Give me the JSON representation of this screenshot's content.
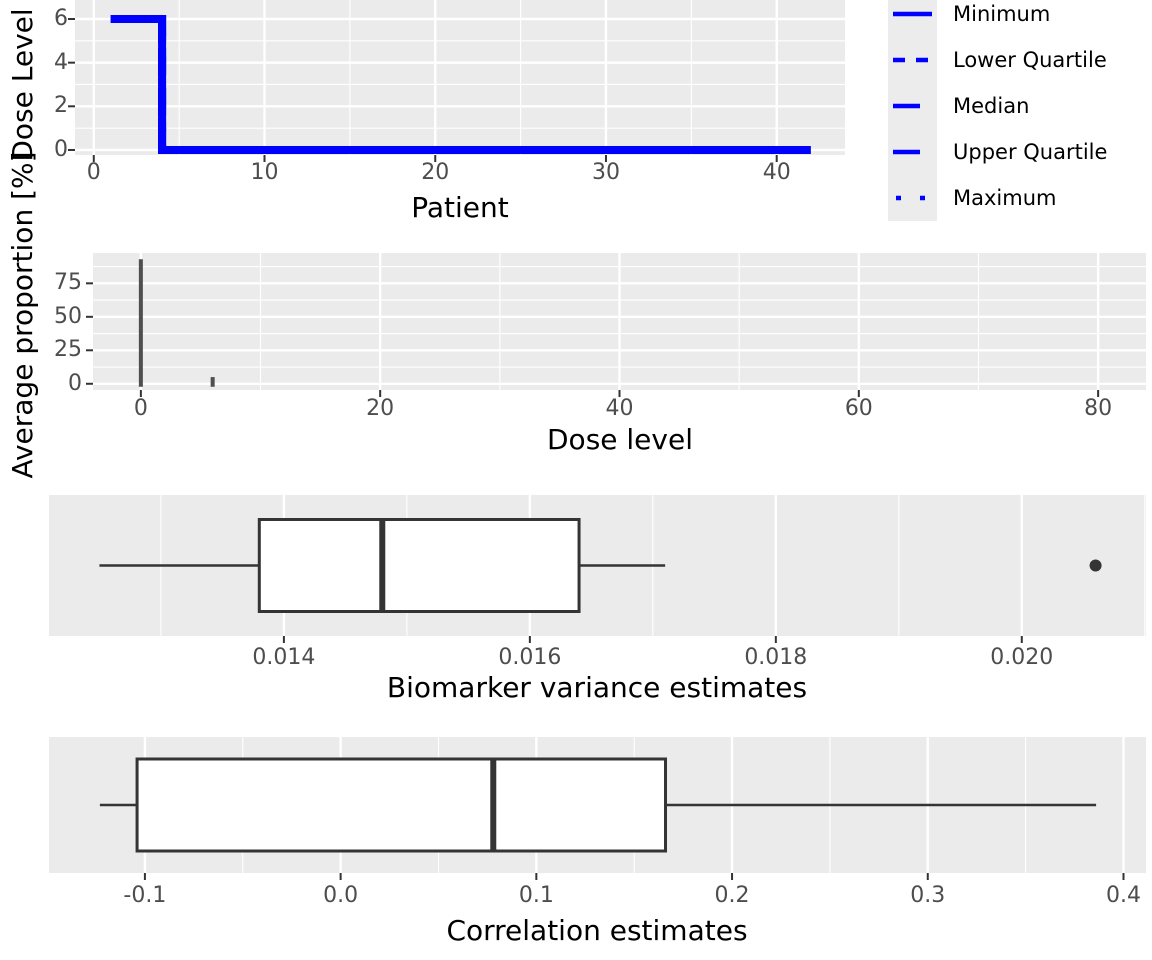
{
  "theme": {
    "panel_bg": "#EBEBEB",
    "grid_color": "#FFFFFF",
    "axis_text_color": "#4D4D4D",
    "axis_title_color": "#000000",
    "tick_mark_color": "#333333",
    "box_stroke_color": "#343434",
    "bar_fill_color": "#4F4F4F",
    "line_color": "#0000FF",
    "legend_key_bg": "#ECECEC"
  },
  "legend": {
    "color": "#0000FF",
    "items": [
      {
        "label": "Minimum",
        "linetype": "solid"
      },
      {
        "label": "Lower Quartile",
        "linetype": "dashed"
      },
      {
        "label": "Median",
        "linetype": "longdash"
      },
      {
        "label": "Upper Quartile",
        "linetype": "longdash"
      },
      {
        "label": "Maximum",
        "linetype": "dotted"
      }
    ]
  },
  "chart_data": [
    {
      "type": "line",
      "step": true,
      "title": "",
      "xlabel": "Patient",
      "ylabel": "Dose Level",
      "color": "#0000FF",
      "xlim": [
        -1.1,
        44.0
      ],
      "ylim": [
        -0.23,
        6.87
      ],
      "x_ticks": {
        "values": [
          0,
          10,
          20,
          30,
          40
        ],
        "labels": [
          "0",
          "10",
          "20",
          "30",
          "40"
        ]
      },
      "y_ticks": {
        "values": [
          0,
          2,
          4,
          6
        ],
        "labels": [
          "0",
          "2",
          "4",
          "6"
        ]
      },
      "path_points": [
        {
          "x": 1,
          "y": 6
        },
        {
          "x": 4,
          "y": 6
        },
        {
          "x": 4,
          "y": 0
        },
        {
          "x": 42,
          "y": 0
        }
      ],
      "series": [
        {
          "name": "Minimum",
          "linetype": "solid"
        },
        {
          "name": "Lower Quartile",
          "linetype": "dashed"
        },
        {
          "name": "Median",
          "linetype": "longdash"
        },
        {
          "name": "Upper Quartile",
          "linetype": "longdash"
        },
        {
          "name": "Maximum",
          "linetype": "dotted"
        }
      ],
      "note": "All five quartile series coincide: dose level 6 for patients 1-3, 0 for patients 4-42"
    },
    {
      "type": "bar",
      "title": "",
      "xlabel": "Dose level",
      "ylabel": "Average proportion [%]",
      "xlim": [
        -4,
        84
      ],
      "ylim": [
        -4.65,
        97.65
      ],
      "x_ticks": {
        "values": [
          0,
          20,
          40,
          60,
          80
        ],
        "labels": [
          "0",
          "20",
          "40",
          "60",
          "80"
        ]
      },
      "y_ticks": {
        "values": [
          0,
          25,
          50,
          75
        ],
        "labels": [
          "0",
          "25",
          "50",
          "75"
        ]
      },
      "bars": [
        {
          "x": 0,
          "value": 93
        },
        {
          "x": 6,
          "value": 5
        }
      ]
    },
    {
      "type": "boxplot",
      "title": "",
      "xlabel": "Biomarker variance estimates",
      "ylabel": "",
      "xlim": [
        0.01209,
        0.02101
      ],
      "x_ticks": {
        "values": [
          0.014,
          0.016,
          0.018,
          0.02
        ],
        "labels": [
          "0.014",
          "0.016",
          "0.018",
          "0.020"
        ]
      },
      "stats": {
        "whisker_min": 0.0125,
        "q1": 0.0138,
        "median": 0.0148,
        "q3": 0.0164,
        "whisker_max": 0.0171
      },
      "outliers": [
        0.0206
      ]
    },
    {
      "type": "boxplot",
      "title": "",
      "xlabel": "Correlation estimates",
      "ylabel": "",
      "xlim": [
        -0.149,
        0.4115
      ],
      "x_ticks": {
        "values": [
          -0.1,
          0.0,
          0.1,
          0.2,
          0.3,
          0.4
        ],
        "labels": [
          "-0.1",
          "0.0",
          "0.1",
          "0.2",
          "0.3",
          "0.4"
        ]
      },
      "stats": {
        "whisker_min": -0.123,
        "q1": -0.104,
        "median": 0.078,
        "q3": 0.166,
        "whisker_max": 0.386
      },
      "outliers": []
    }
  ]
}
